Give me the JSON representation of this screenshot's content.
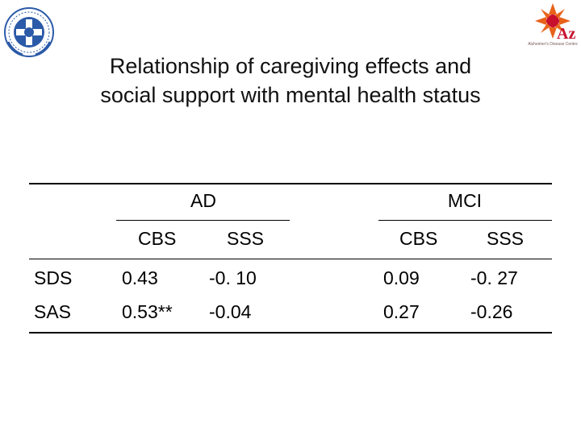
{
  "title": {
    "line1": "Relationship of caregiving effects and",
    "line2": "social support with mental health status"
  },
  "right_logo_caption": "Alzheimer's Disease Centre",
  "table": {
    "groups": [
      "AD",
      "MCI"
    ],
    "subheaders": [
      "CBS",
      "SSS",
      "CBS",
      "SSS"
    ],
    "rows": [
      {
        "label": "SDS",
        "values": [
          "0.43",
          "-0. 10",
          "0.09",
          "-0. 27"
        ]
      },
      {
        "label": "SAS",
        "values": [
          "0.53**",
          "-0.04",
          "0.27",
          "-0.26"
        ]
      }
    ]
  },
  "colors": {
    "left_logo_blue": "#2b5aa8",
    "right_logo_orange": "#e8621a",
    "right_logo_red": "#c8102e"
  }
}
